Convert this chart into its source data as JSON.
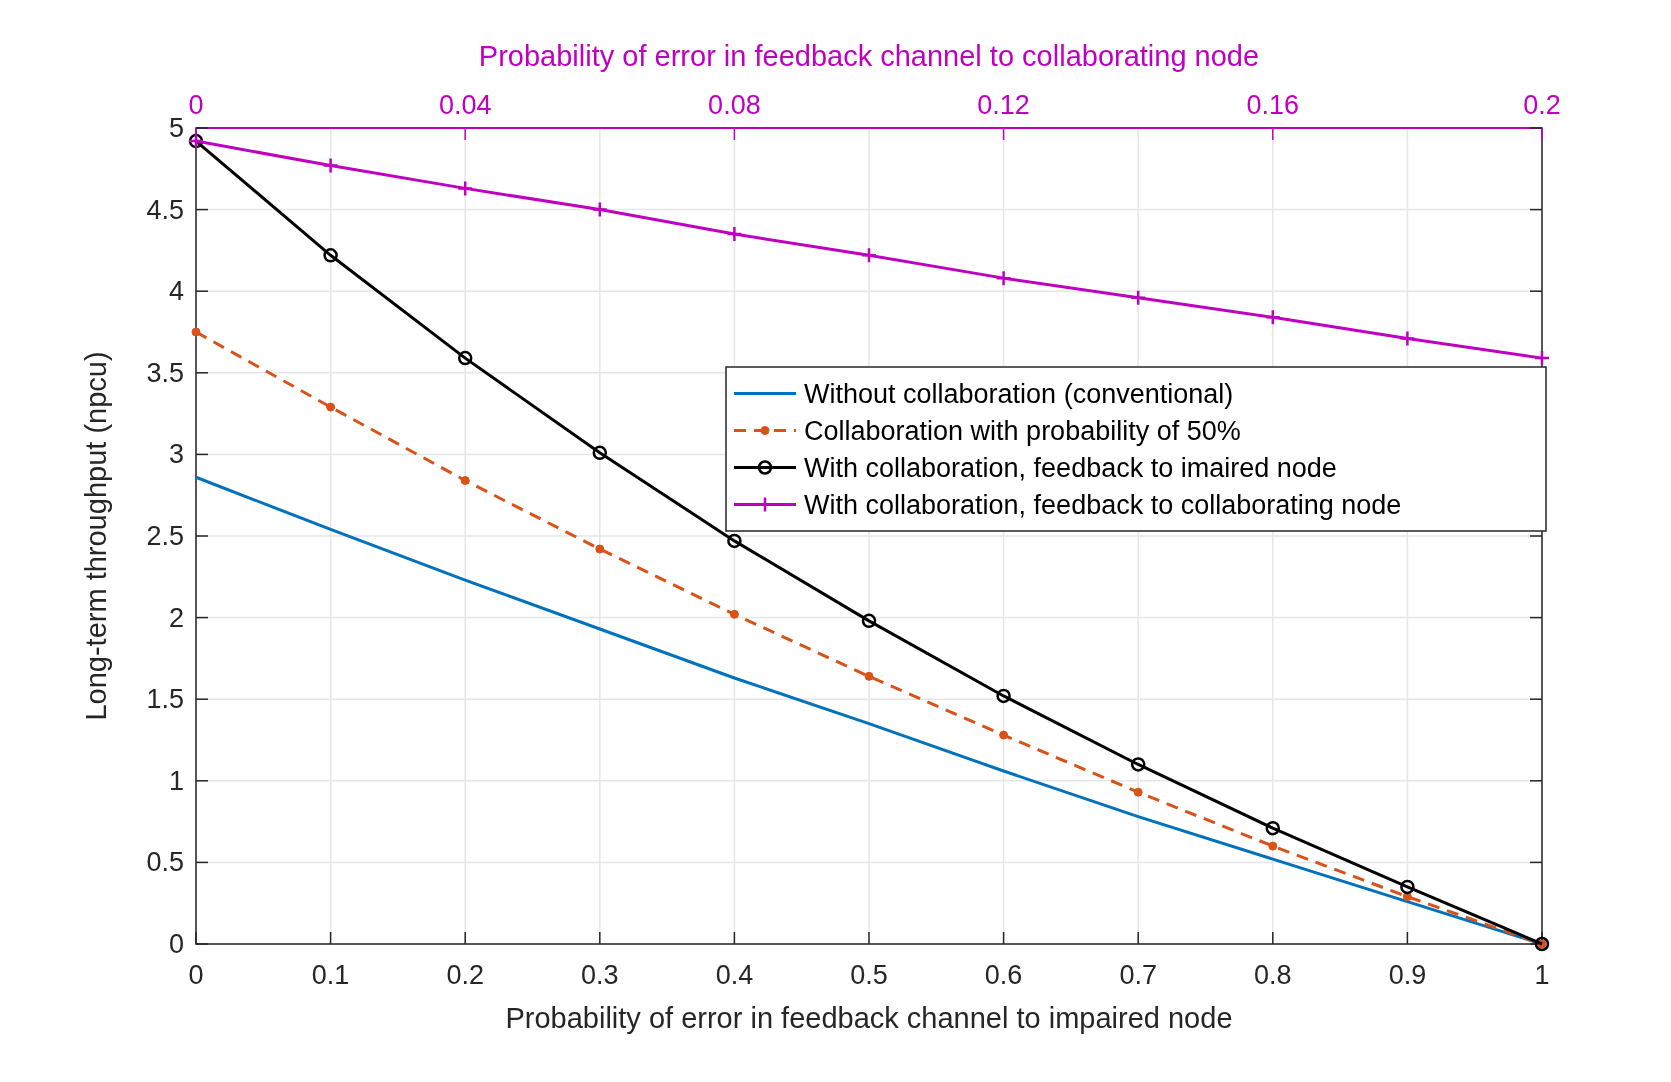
{
  "chart_data": {
    "type": "line",
    "xlabel": "Probability of error in feedback channel to impaired node",
    "ylabel": "Long-term throughput (npcu)",
    "x2label": "Probability of error in feedback channel to collaborating node",
    "x": [
      0,
      0.1,
      0.2,
      0.3,
      0.4,
      0.5,
      0.6,
      0.7,
      0.8,
      0.9,
      1
    ],
    "xlim": [
      0,
      1
    ],
    "xticks": [
      0,
      0.1,
      0.2,
      0.3,
      0.4,
      0.5,
      0.6,
      0.7,
      0.8,
      0.9,
      1
    ],
    "x2lim": [
      0,
      0.2
    ],
    "x2ticks": [
      0,
      0.04,
      0.08,
      0.12,
      0.16,
      0.2
    ],
    "ylim": [
      0,
      5
    ],
    "yticks": [
      0,
      0.5,
      1,
      1.5,
      2,
      2.5,
      3,
      3.5,
      4,
      4.5,
      5
    ],
    "grid": true,
    "legend": "right",
    "series": [
      {
        "name": "Without collaboration (conventional)",
        "color": "#0072bd",
        "marker": "none",
        "line_style": "solid",
        "values": [
          2.86,
          2.54,
          2.23,
          1.93,
          1.63,
          1.35,
          1.06,
          0.78,
          0.52,
          0.26,
          0
        ]
      },
      {
        "name": "Collaboration with probability of 50%",
        "color": "#d95319",
        "marker": "circle",
        "line_style": "dashed",
        "values": [
          3.75,
          3.29,
          2.84,
          2.42,
          2.02,
          1.64,
          1.28,
          0.93,
          0.6,
          0.29,
          0
        ]
      },
      {
        "name": "With collaboration, feedback to imaired node",
        "color": "#000000",
        "marker": "circle",
        "line_style": "solid",
        "values": [
          4.92,
          4.22,
          3.59,
          3.01,
          2.47,
          1.98,
          1.52,
          1.1,
          0.71,
          0.35,
          0
        ]
      },
      {
        "name": "With collaboration, feedback to collaborating node",
        "color": "#c000c0",
        "marker": "cross",
        "line_style": "solid",
        "axis": "x2",
        "x": [
          0,
          0.02,
          0.04,
          0.06,
          0.08,
          0.1,
          0.12,
          0.14,
          0.16,
          0.18,
          0.2
        ],
        "values": [
          4.92,
          4.77,
          4.63,
          4.5,
          4.35,
          4.22,
          4.08,
          3.96,
          3.84,
          3.71,
          3.59
        ]
      }
    ]
  }
}
